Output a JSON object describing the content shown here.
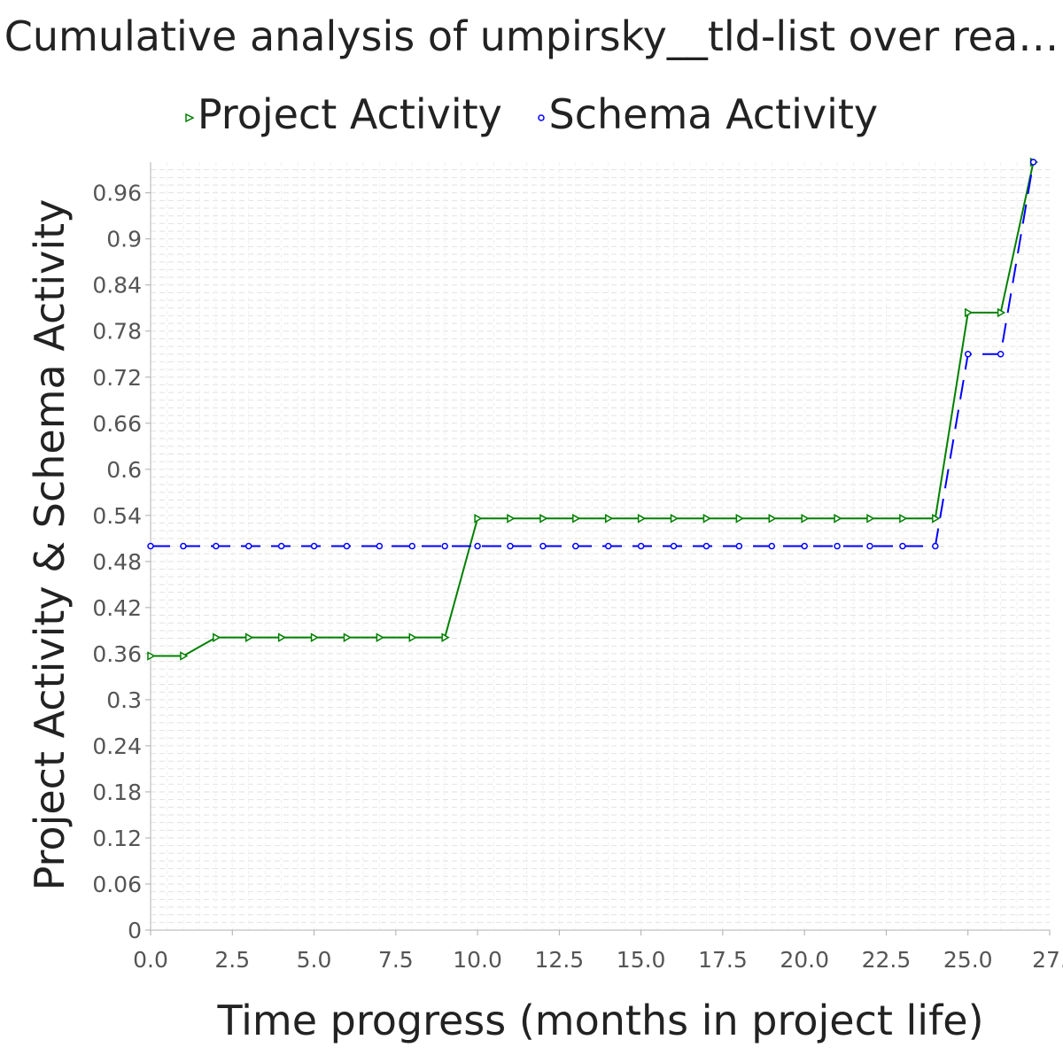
{
  "chart_data": {
    "type": "line",
    "title": "Cumulative analysis of umpirsky__tld-list over rea…",
    "xlabel": "Time progress (months in project life)",
    "ylabel": "Project Activity & Schema Activity",
    "xlim": [
      0,
      27.5
    ],
    "ylim": [
      0,
      1.0
    ],
    "x_tick_labels": [
      "0.0",
      "2.5",
      "5.0",
      "7.5",
      "10.0",
      "12.5",
      "15.0",
      "17.5",
      "20.0",
      "22.5",
      "25.0",
      "27."
    ],
    "y_tick_labels": [
      "0",
      "0.06",
      "0.12",
      "0.18",
      "0.24",
      "0.3",
      "0.36",
      "0.42",
      "0.48",
      "0.54",
      "0.6",
      "0.66",
      "0.72",
      "0.78",
      "0.84",
      "0.9",
      "0.96"
    ],
    "grid": true,
    "legend_position": "top",
    "series": [
      {
        "name": "Project Activity",
        "color": "#008000",
        "marker": "triangle-right",
        "line_style": "solid",
        "x": [
          0,
          1,
          2,
          3,
          4,
          5,
          6,
          7,
          8,
          9,
          10,
          11,
          12,
          13,
          14,
          15,
          16,
          17,
          18,
          19,
          20,
          21,
          22,
          23,
          24,
          25,
          26,
          27
        ],
        "y": [
          0.357,
          0.357,
          0.381,
          0.381,
          0.381,
          0.381,
          0.381,
          0.381,
          0.381,
          0.381,
          0.536,
          0.536,
          0.536,
          0.536,
          0.536,
          0.536,
          0.536,
          0.536,
          0.536,
          0.536,
          0.536,
          0.536,
          0.536,
          0.536,
          0.536,
          0.804,
          0.804,
          1.0
        ]
      },
      {
        "name": "Schema Activity",
        "color": "#0000ff",
        "marker": "circle",
        "line_style": "dashed",
        "x": [
          0,
          1,
          2,
          3,
          4,
          5,
          6,
          7,
          8,
          9,
          10,
          11,
          12,
          13,
          14,
          15,
          16,
          17,
          18,
          19,
          20,
          21,
          22,
          23,
          24,
          25,
          26,
          27
        ],
        "y": [
          0.5,
          0.5,
          0.5,
          0.5,
          0.5,
          0.5,
          0.5,
          0.5,
          0.5,
          0.5,
          0.5,
          0.5,
          0.5,
          0.5,
          0.5,
          0.5,
          0.5,
          0.5,
          0.5,
          0.5,
          0.5,
          0.5,
          0.5,
          0.5,
          0.5,
          0.75,
          0.75,
          1.0
        ]
      }
    ]
  }
}
